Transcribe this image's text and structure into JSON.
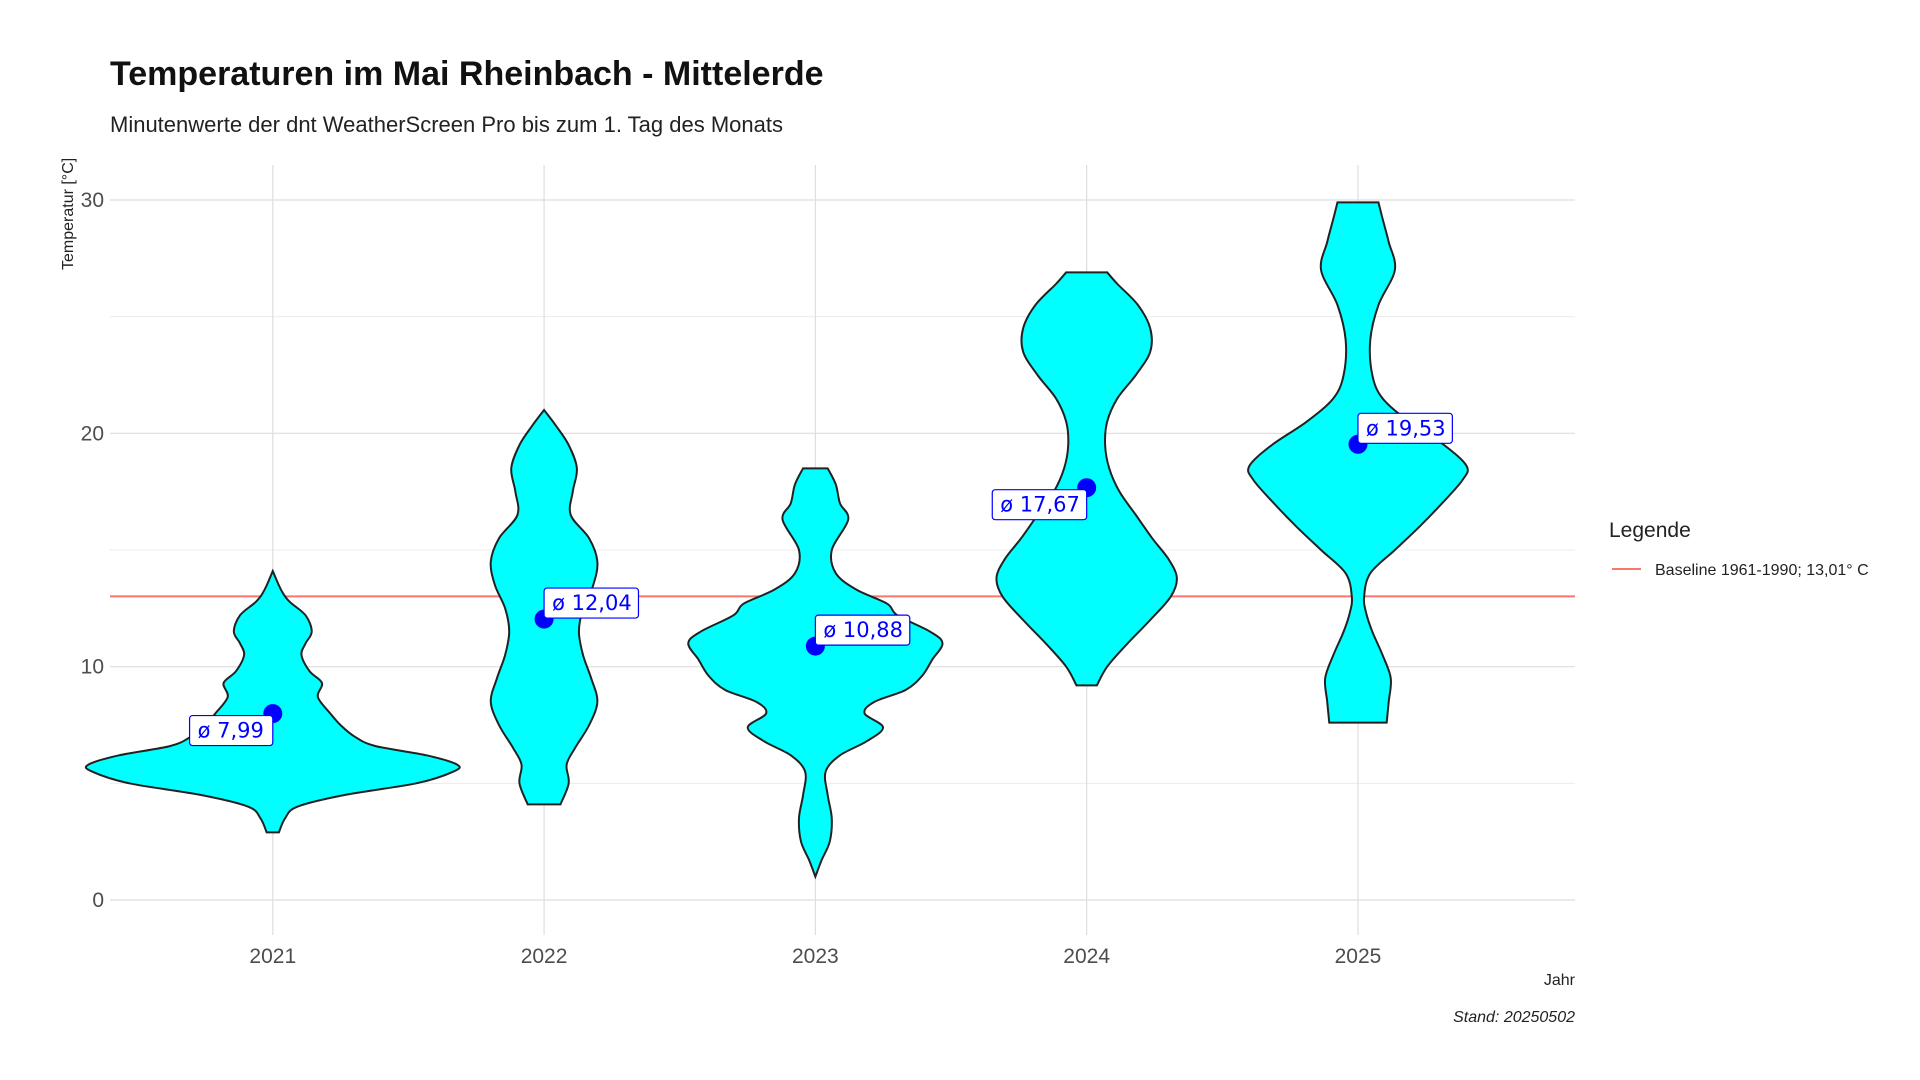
{
  "chart_data": {
    "type": "violin",
    "title": "Temperaturen im Mai Rheinbach - Mittelerde",
    "subtitle": "Minutenwerte der dnt WeatherScreen Pro bis zum 1. Tag des Monats",
    "xlabel": "Jahr",
    "ylabel": "Temperatur [°C]",
    "caption": "Stand: 20250502",
    "ylim": [
      -1.5,
      31.5
    ],
    "yticks": [
      0,
      10,
      20,
      30
    ],
    "grid": true,
    "categories": [
      "2021",
      "2022",
      "2023",
      "2024",
      "2025"
    ],
    "violin_fill": "#00ffff",
    "violin_stroke": "#222222",
    "violins": [
      {
        "year": "2021",
        "mean": 7.99,
        "mean_label": "ø 7,99",
        "label_side": "left",
        "profile": [
          [
            2.9,
            0.03
          ],
          [
            3.5,
            0.06
          ],
          [
            4.0,
            0.12
          ],
          [
            4.5,
            0.35
          ],
          [
            5.0,
            0.7
          ],
          [
            5.5,
            0.88
          ],
          [
            5.8,
            0.9
          ],
          [
            6.2,
            0.75
          ],
          [
            6.6,
            0.5
          ],
          [
            7.0,
            0.4
          ],
          [
            7.5,
            0.33
          ],
          [
            8.0,
            0.28
          ],
          [
            8.7,
            0.22
          ],
          [
            9.3,
            0.24
          ],
          [
            9.8,
            0.18
          ],
          [
            10.5,
            0.14
          ],
          [
            11.0,
            0.16
          ],
          [
            11.5,
            0.19
          ],
          [
            12.2,
            0.16
          ],
          [
            12.8,
            0.08
          ],
          [
            13.3,
            0.04
          ],
          [
            14.1,
            0.0
          ]
        ]
      },
      {
        "year": "2022",
        "mean": 12.04,
        "mean_label": "ø 12,04",
        "label_side": "right",
        "profile": [
          [
            4.1,
            0.08
          ],
          [
            5.0,
            0.12
          ],
          [
            5.8,
            0.11
          ],
          [
            6.5,
            0.15
          ],
          [
            7.5,
            0.22
          ],
          [
            8.5,
            0.26
          ],
          [
            9.5,
            0.23
          ],
          [
            10.5,
            0.19
          ],
          [
            11.5,
            0.17
          ],
          [
            12.5,
            0.19
          ],
          [
            13.5,
            0.24
          ],
          [
            14.5,
            0.26
          ],
          [
            15.5,
            0.22
          ],
          [
            16.5,
            0.13
          ],
          [
            17.5,
            0.14
          ],
          [
            18.5,
            0.16
          ],
          [
            19.5,
            0.12
          ],
          [
            20.3,
            0.06
          ],
          [
            21.0,
            0.0
          ]
        ]
      },
      {
        "year": "2023",
        "mean": 10.88,
        "mean_label": "ø 10,88",
        "label_side": "right",
        "profile": [
          [
            1.0,
            0.0
          ],
          [
            1.7,
            0.03
          ],
          [
            2.5,
            0.07
          ],
          [
            3.5,
            0.08
          ],
          [
            4.5,
            0.06
          ],
          [
            5.5,
            0.05
          ],
          [
            6.2,
            0.12
          ],
          [
            6.8,
            0.25
          ],
          [
            7.4,
            0.33
          ],
          [
            8.0,
            0.24
          ],
          [
            8.5,
            0.29
          ],
          [
            9.0,
            0.44
          ],
          [
            9.6,
            0.52
          ],
          [
            10.3,
            0.57
          ],
          [
            11.0,
            0.62
          ],
          [
            11.5,
            0.56
          ],
          [
            12.2,
            0.4
          ],
          [
            12.7,
            0.35
          ],
          [
            13.3,
            0.2
          ],
          [
            14.0,
            0.1
          ],
          [
            15.0,
            0.08
          ],
          [
            16.3,
            0.16
          ],
          [
            17.0,
            0.12
          ],
          [
            17.8,
            0.1
          ],
          [
            18.5,
            0.06
          ]
        ]
      },
      {
        "year": "2024",
        "mean": 17.67,
        "mean_label": "ø 17,67",
        "label_side": "left",
        "profile": [
          [
            9.2,
            0.05
          ],
          [
            10.0,
            0.1
          ],
          [
            11.0,
            0.2
          ],
          [
            12.0,
            0.31
          ],
          [
            13.0,
            0.41
          ],
          [
            13.8,
            0.44
          ],
          [
            14.6,
            0.4
          ],
          [
            15.5,
            0.32
          ],
          [
            16.5,
            0.24
          ],
          [
            17.5,
            0.16
          ],
          [
            18.5,
            0.11
          ],
          [
            19.5,
            0.09
          ],
          [
            20.5,
            0.1
          ],
          [
            21.5,
            0.15
          ],
          [
            22.5,
            0.24
          ],
          [
            23.5,
            0.31
          ],
          [
            24.5,
            0.31
          ],
          [
            25.5,
            0.25
          ],
          [
            26.4,
            0.15
          ],
          [
            26.9,
            0.1
          ]
        ]
      },
      {
        "year": "2025",
        "mean": 19.53,
        "mean_label": "ø 19,53",
        "label_side": "right",
        "profile": [
          [
            7.6,
            0.14
          ],
          [
            8.5,
            0.15
          ],
          [
            9.5,
            0.16
          ],
          [
            10.5,
            0.12
          ],
          [
            11.5,
            0.07
          ],
          [
            12.3,
            0.04
          ],
          [
            13.0,
            0.03
          ],
          [
            14.0,
            0.06
          ],
          [
            15.0,
            0.18
          ],
          [
            16.0,
            0.3
          ],
          [
            17.0,
            0.41
          ],
          [
            18.0,
            0.51
          ],
          [
            18.6,
            0.53
          ],
          [
            19.5,
            0.42
          ],
          [
            20.5,
            0.25
          ],
          [
            21.5,
            0.12
          ],
          [
            22.5,
            0.07
          ],
          [
            24.0,
            0.06
          ],
          [
            25.5,
            0.1
          ],
          [
            27.0,
            0.18
          ],
          [
            28.2,
            0.15
          ],
          [
            29.2,
            0.12
          ],
          [
            29.9,
            0.1
          ]
        ]
      }
    ],
    "baseline": {
      "value": 13.01,
      "color": "#f8766d",
      "label": "Baseline 1961-1990; 13,01° C"
    },
    "legend": {
      "title": "Legende",
      "placement": "right"
    },
    "mean_marker_color": "#0000ff",
    "mean_label_color": "#0000ff"
  }
}
